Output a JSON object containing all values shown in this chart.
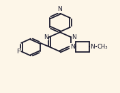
{
  "background_color": "#fdf6e8",
  "bond_color": "#1a1a2e",
  "atom_color": "#1a1a2e",
  "line_width": 1.3,
  "font_size": 6.5,
  "xlim": [
    0.0,
    1.0
  ],
  "ylim": [
    0.0,
    1.0
  ]
}
